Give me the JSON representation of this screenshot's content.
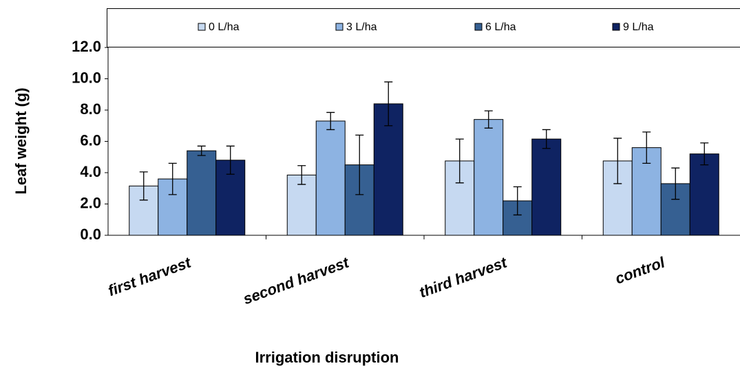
{
  "chart_data": {
    "type": "bar",
    "x_label": "Irrigation disruption",
    "y_label": "Leaf weight (g)",
    "categories": [
      "first harvest",
      "second harvest",
      "third harvest",
      "control"
    ],
    "series": [
      {
        "name": "0 L/ha",
        "color": "#c6d9f1",
        "values": [
          3.15,
          3.85,
          4.75,
          4.75
        ],
        "errors": [
          0.9,
          0.6,
          1.4,
          1.45
        ]
      },
      {
        "name": "3 L/ha",
        "color": "#8db3e2",
        "values": [
          3.6,
          7.3,
          7.4,
          5.6
        ],
        "errors": [
          1.0,
          0.55,
          0.55,
          1.0
        ]
      },
      {
        "name": "6 L/ha",
        "color": "#366092",
        "values": [
          5.4,
          4.5,
          2.2,
          3.3
        ],
        "errors": [
          0.3,
          1.9,
          0.9,
          1.0
        ]
      },
      {
        "name": "9 L/ha",
        "color": "#0f2362",
        "values": [
          4.8,
          8.4,
          6.15,
          5.2
        ],
        "errors": [
          0.9,
          1.4,
          0.6,
          0.7
        ]
      }
    ],
    "ylim": [
      0,
      12
    ],
    "yticks": [
      {
        "value": 0,
        "label": "0.0"
      },
      {
        "value": 2,
        "label": "2.0"
      },
      {
        "value": 4,
        "label": "4.0"
      },
      {
        "value": 6,
        "label": "6.0"
      },
      {
        "value": 8,
        "label": "8.0"
      },
      {
        "value": 10,
        "label": "10.0"
      },
      {
        "value": 12,
        "label": "12.0"
      }
    ],
    "legend_position": "top"
  }
}
